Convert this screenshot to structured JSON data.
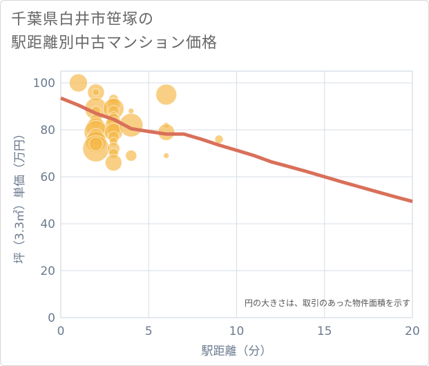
{
  "title": {
    "line1": "千葉県白井市笹塚の",
    "line2": "駅距離別中古マンション価格"
  },
  "chart_data": {
    "type": "scatter",
    "xlabel": "駅距離（分）",
    "ylabel": "坪（3.3㎡）単価（万円）",
    "xlim": [
      0,
      20
    ],
    "ylim": [
      0,
      105
    ],
    "xticks": [
      0,
      5,
      10,
      15,
      20
    ],
    "yticks": [
      0,
      20,
      40,
      60,
      80,
      100
    ],
    "grid": true,
    "note": "円の大きさは、取引のあった物件面積を示す",
    "colors": {
      "bubble": "#f5b84a",
      "trend": "#d9705a",
      "grid": "#d5dde6",
      "plot_border": "#c9d3de"
    },
    "bubbles": [
      {
        "x": 1,
        "y": 100,
        "r": 13
      },
      {
        "x": 2,
        "y": 96,
        "r": 12
      },
      {
        "x": 2,
        "y": 96,
        "r": 5
      },
      {
        "x": 2,
        "y": 89,
        "r": 16
      },
      {
        "x": 2,
        "y": 88,
        "r": 7
      },
      {
        "x": 2,
        "y": 84,
        "r": 9
      },
      {
        "x": 2,
        "y": 81,
        "r": 14
      },
      {
        "x": 2,
        "y": 79,
        "r": 17
      },
      {
        "x": 2,
        "y": 77,
        "r": 12
      },
      {
        "x": 2,
        "y": 75,
        "r": 15
      },
      {
        "x": 2,
        "y": 72,
        "r": 19
      },
      {
        "x": 2,
        "y": 74,
        "r": 10
      },
      {
        "x": 3,
        "y": 93,
        "r": 7
      },
      {
        "x": 3,
        "y": 91,
        "r": 9
      },
      {
        "x": 3,
        "y": 89,
        "r": 15
      },
      {
        "x": 3,
        "y": 88,
        "r": 8
      },
      {
        "x": 3,
        "y": 86,
        "r": 6
      },
      {
        "x": 3,
        "y": 84,
        "r": 10
      },
      {
        "x": 3,
        "y": 82,
        "r": 12
      },
      {
        "x": 3,
        "y": 80,
        "r": 9
      },
      {
        "x": 3,
        "y": 79,
        "r": 13
      },
      {
        "x": 3,
        "y": 77,
        "r": 8
      },
      {
        "x": 3,
        "y": 75,
        "r": 6
      },
      {
        "x": 3,
        "y": 72,
        "r": 9
      },
      {
        "x": 3,
        "y": 70,
        "r": 7
      },
      {
        "x": 3,
        "y": 66,
        "r": 12
      },
      {
        "x": 4,
        "y": 88,
        "r": 4
      },
      {
        "x": 4,
        "y": 82,
        "r": 17
      },
      {
        "x": 4,
        "y": 69,
        "r": 8
      },
      {
        "x": 6,
        "y": 95,
        "r": 15
      },
      {
        "x": 6,
        "y": 82,
        "r": 4
      },
      {
        "x": 6,
        "y": 79,
        "r": 12
      },
      {
        "x": 6,
        "y": 69,
        "r": 4
      },
      {
        "x": 9,
        "y": 76,
        "r": 6
      }
    ],
    "trend": {
      "x": [
        0,
        1,
        2,
        3,
        4,
        5,
        6,
        7,
        8,
        9,
        10,
        11,
        12,
        13,
        14,
        15,
        16,
        17,
        18,
        19,
        20
      ],
      "y": [
        93.5,
        90.5,
        87,
        84.5,
        80.5,
        79.3,
        78.2,
        78.2,
        76,
        73.5,
        71.3,
        69,
        66.3,
        64.3,
        62.2,
        60,
        57.8,
        55.7,
        53.6,
        51.5,
        49.5
      ]
    }
  }
}
